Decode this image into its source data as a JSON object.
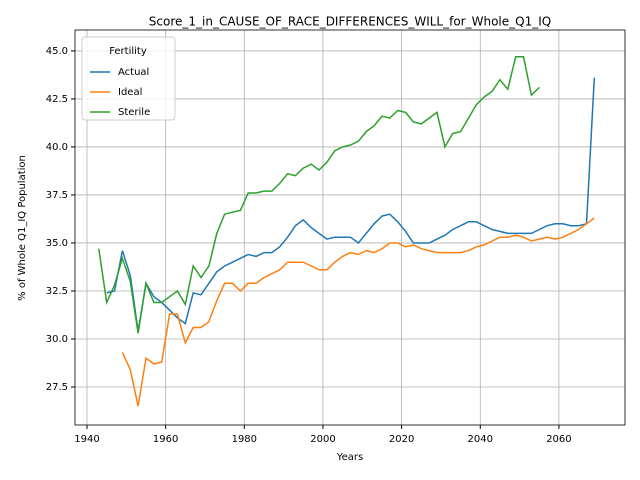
{
  "chart_data": {
    "type": "line",
    "title": "Score_1_in_CAUSE_OF_RACE_DIFFERENCES_WILL_for_Whole_Q1_IQ",
    "xlabel": "Years",
    "ylabel": "% of Whole Q1_IQ Population",
    "legend_title": "Fertility",
    "legend": "upper left",
    "grid": true,
    "xlim": [
      1936.95,
      2076.8
    ],
    "ylim": [
      25.52,
      46.09
    ],
    "xticks": [
      1940,
      1960,
      1980,
      2000,
      2020,
      2040,
      2060
    ],
    "yticks": [
      27.5,
      {
        "value": 30,
        "label": "30.0"
      },
      32.5,
      {
        "value": 35,
        "label": "35.0"
      },
      37.5,
      {
        "value": 40,
        "label": "40.0"
      },
      42.5,
      {
        "value": 45,
        "label": "45.0"
      }
    ],
    "x": [
      1943,
      1945,
      1947,
      1949,
      1951,
      1953,
      1955,
      1957,
      1959,
      1961,
      1963,
      1965,
      1967,
      1969,
      1971,
      1973,
      1975,
      1977,
      1979,
      1981,
      1983,
      1985,
      1987,
      1989,
      1991,
      1993,
      1995,
      1997,
      1999,
      2001,
      2003,
      2005,
      2007,
      2009,
      2011,
      2013,
      2015,
      2017,
      2019,
      2021,
      2023,
      2025,
      2027,
      2029,
      2031,
      2033,
      2035,
      2037,
      2039,
      2041,
      2043,
      2045,
      2047,
      2049,
      2051,
      2053,
      2055,
      2057,
      2059,
      2061,
      2063,
      2065,
      2067,
      2069,
      2071
    ],
    "series": [
      {
        "name": "Actual",
        "color": "#1f77b4",
        "values": [
          null,
          32.4,
          32.5,
          34.6,
          33.3,
          30.4,
          32.9,
          32.2,
          31.9,
          31.5,
          31.1,
          30.8,
          32.4,
          32.3,
          32.9,
          33.5,
          33.8,
          34.0,
          34.2,
          34.4,
          34.3,
          34.5,
          34.5,
          34.8,
          35.3,
          35.9,
          36.2,
          35.8,
          35.5,
          35.2,
          35.3,
          35.3,
          35.3,
          35.0,
          35.5,
          36.0,
          36.4,
          36.5,
          36.1,
          35.6,
          35.0,
          35.0,
          35.0,
          35.2,
          35.4,
          35.7,
          35.9,
          36.1,
          36.1,
          35.9,
          35.7,
          35.6,
          35.5,
          35.5,
          35.5,
          35.5,
          35.7,
          35.9,
          36.0,
          36.0,
          35.9,
          35.9,
          36.0,
          43.6,
          null
        ]
      },
      {
        "name": "Ideal",
        "color": "#ff7f0e",
        "values": [
          null,
          null,
          null,
          29.3,
          28.4,
          26.5,
          29.0,
          28.7,
          28.8,
          31.3,
          31.3,
          29.8,
          30.6,
          30.6,
          30.9,
          32.0,
          32.9,
          32.9,
          32.5,
          32.9,
          32.9,
          33.2,
          33.4,
          33.6,
          34.0,
          34.0,
          34.0,
          33.8,
          33.6,
          33.6,
          34.0,
          34.3,
          34.5,
          34.4,
          34.6,
          34.5,
          34.7,
          35.0,
          35.0,
          34.8,
          34.9,
          34.7,
          34.6,
          34.5,
          34.5,
          34.5,
          34.5,
          34.6,
          34.8,
          34.9,
          35.1,
          35.3,
          35.3,
          35.4,
          35.3,
          35.1,
          35.2,
          35.3,
          35.2,
          35.3,
          35.5,
          35.7,
          36.0,
          36.3,
          null
        ]
      },
      {
        "name": "Sterile",
        "color": "#2ca02c",
        "values": [
          34.7,
          31.9,
          32.8,
          34.2,
          33.0,
          30.3,
          32.9,
          31.9,
          31.9,
          32.2,
          32.5,
          31.8,
          33.8,
          33.2,
          33.8,
          35.5,
          36.5,
          36.6,
          36.7,
          37.6,
          37.6,
          37.7,
          37.7,
          38.1,
          38.6,
          38.5,
          38.9,
          39.1,
          38.8,
          39.2,
          39.8,
          40.0,
          40.1,
          40.3,
          40.8,
          41.1,
          41.6,
          41.5,
          41.9,
          41.8,
          41.3,
          41.2,
          41.5,
          41.8,
          40.0,
          40.7,
          40.8,
          41.5,
          42.2,
          42.6,
          42.9,
          43.5,
          43.0,
          44.7,
          44.7,
          42.7,
          43.1,
          null,
          null,
          null,
          null,
          null,
          null,
          null,
          null
        ]
      }
    ]
  }
}
